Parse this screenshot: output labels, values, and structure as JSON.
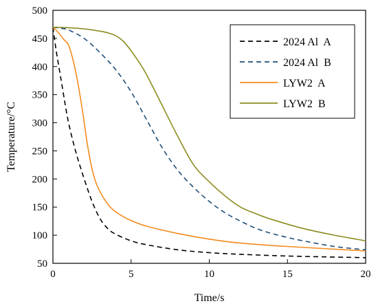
{
  "chart_data": {
    "type": "line",
    "title": "",
    "xlabel": "Time/s",
    "ylabel": "Temperature/°C",
    "xlim": [
      0,
      20
    ],
    "ylim": [
      50,
      500
    ],
    "xticks": [
      0,
      5,
      10,
      15,
      20
    ],
    "yticks": [
      50,
      100,
      150,
      200,
      250,
      300,
      350,
      400,
      450,
      500
    ],
    "grid": false,
    "legend": "top-right",
    "series": [
      {
        "name": "2024 Al  A",
        "color": "#000000",
        "style": "dashed",
        "x": [
          0,
          0.2,
          0.5,
          0.8,
          1.0,
          1.3,
          1.6,
          2.0,
          2.5,
          3.0,
          3.5,
          4.0,
          5.0,
          6.0,
          8.0,
          10.0,
          12.0,
          15.0,
          20.0
        ],
        "y": [
          470,
          430,
          380,
          330,
          300,
          265,
          235,
          200,
          160,
          130,
          112,
          102,
          90,
          83,
          74,
          69,
          66,
          63,
          60
        ]
      },
      {
        "name": "2024 Al  B",
        "color": "#1f4e79",
        "style": "dashed",
        "x": [
          0,
          0.5,
          1.0,
          2.0,
          3.0,
          4.0,
          5.0,
          6.0,
          7.0,
          8.0,
          9.0,
          10.0,
          11.0,
          12.0,
          13.0,
          14.0,
          15.0,
          16.0,
          18.0,
          20.0
        ],
        "y": [
          470,
          468,
          465,
          450,
          425,
          395,
          355,
          305,
          255,
          215,
          185,
          160,
          140,
          125,
          112,
          103,
          96,
          90,
          80,
          74
        ]
      },
      {
        "name": "LYW2  A",
        "color": "#f28a1c",
        "style": "solid",
        "x": [
          0,
          0.3,
          0.7,
          1.0,
          1.3,
          1.6,
          1.9,
          2.2,
          2.5,
          2.8,
          3.2,
          3.6,
          4.0,
          4.5,
          5.0,
          6.0,
          8.0,
          10.0,
          12.0,
          15.0,
          20.0
        ],
        "y": [
          470,
          462,
          448,
          438,
          410,
          370,
          320,
          262,
          218,
          190,
          168,
          152,
          142,
          133,
          126,
          116,
          103,
          93,
          86,
          80,
          72
        ]
      },
      {
        "name": "LYW2  B",
        "color": "#8b8b1e",
        "style": "solid",
        "x": [
          0,
          1.0,
          2.0,
          3.0,
          3.5,
          4.0,
          4.5,
          5.0,
          5.5,
          6.0,
          7.0,
          8.0,
          9.0,
          10.0,
          11.0,
          12.0,
          13.0,
          14.0,
          16.0,
          18.0,
          20.0
        ],
        "y": [
          470,
          469,
          467,
          463,
          460,
          455,
          445,
          428,
          408,
          385,
          330,
          275,
          225,
          195,
          170,
          150,
          138,
          128,
          112,
          100,
          90
        ]
      }
    ]
  }
}
